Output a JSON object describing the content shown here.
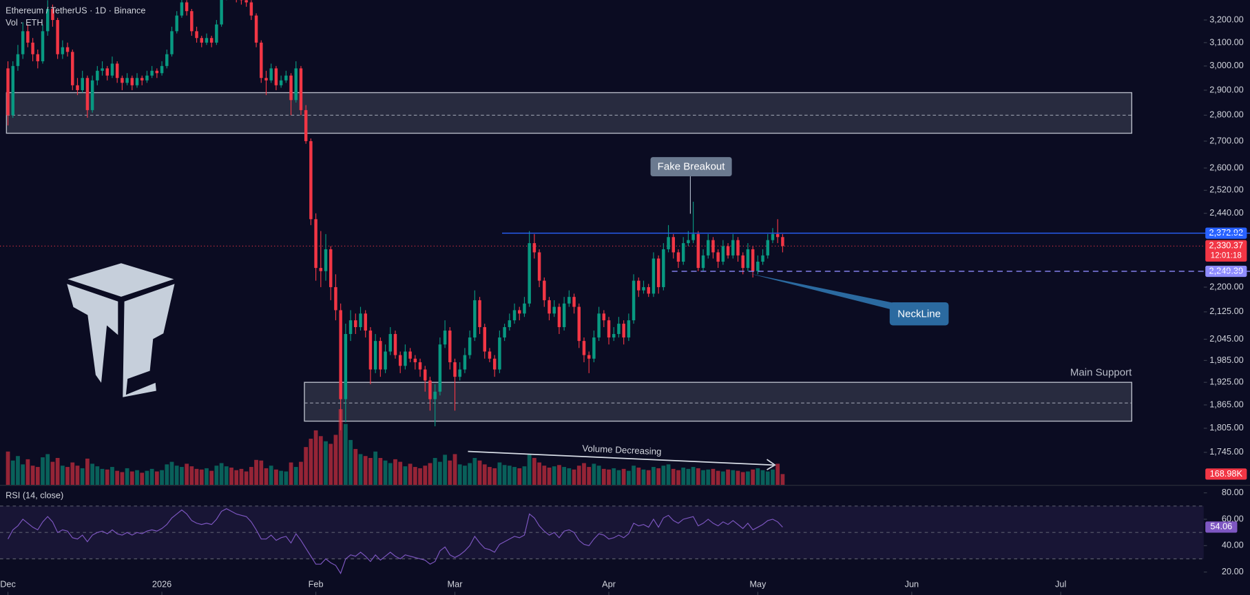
{
  "header": {
    "symbol": "Ethereum / TetherUS · 1D · Binance"
  },
  "annotations": {
    "fake_breakout": "Fake Breakout",
    "neckline": "NeckLine",
    "volume_note": "Volume Decreasing"
  },
  "chart_data": {
    "type": "candlestick",
    "log_scale": true,
    "up_color": "#089981",
    "down_color": "#f23645",
    "xlim": [
      -1.6,
      240.8
    ],
    "xticks": [
      {
        "value": 0,
        "label": "Dec"
      },
      {
        "value": 31,
        "label": "2026"
      },
      {
        "value": 62,
        "label": "Feb"
      },
      {
        "value": 90,
        "label": "Mar"
      },
      {
        "value": 121,
        "label": "Apr"
      },
      {
        "value": 151,
        "label": "May"
      },
      {
        "value": 182,
        "label": "Jun"
      },
      {
        "value": 212,
        "label": "Jul"
      }
    ],
    "ylim": [
      1667,
      3291
    ],
    "yticks": [
      {
        "value": 3200,
        "label": "3,200.00"
      },
      {
        "value": 3100,
        "label": "3,100.00"
      },
      {
        "value": 3000,
        "label": "3,000.00"
      },
      {
        "value": 2900,
        "label": "2,900.00"
      },
      {
        "value": 2800,
        "label": "2,800.00"
      },
      {
        "value": 2700,
        "label": "2,700.00"
      },
      {
        "value": 2600,
        "label": "2,600.00"
      },
      {
        "value": 2520,
        "label": "2,520.00"
      },
      {
        "value": 2440,
        "label": "2,440.00"
      },
      {
        "value": 2200,
        "label": "2,200.00"
      },
      {
        "value": 2125,
        "label": "2,125.00"
      },
      {
        "value": 2045,
        "label": "2,045.00"
      },
      {
        "value": 1985,
        "label": "1,985.00"
      },
      {
        "value": 1925,
        "label": "1,925.00"
      },
      {
        "value": 1865,
        "label": "1,865.00"
      },
      {
        "value": 1805,
        "label": "1,805.00"
      },
      {
        "value": 1745,
        "label": "1,745.00"
      }
    ],
    "ohlc": [
      [
        2990,
        3020,
        2760,
        2800
      ],
      [
        2800,
        3020,
        2790,
        3000
      ],
      [
        3000,
        3090,
        2980,
        3050
      ],
      [
        3050,
        3190,
        3030,
        3150
      ],
      [
        3150,
        3180,
        3080,
        3100
      ],
      [
        3100,
        3120,
        3020,
        3050
      ],
      [
        3050,
        3070,
        2990,
        3020
      ],
      [
        3020,
        3180,
        3010,
        3150
      ],
      [
        3150,
        3290,
        3130,
        3250
      ],
      [
        3250,
        3270,
        3170,
        3200
      ],
      [
        3200,
        3210,
        3030,
        3050
      ],
      [
        3050,
        3110,
        3030,
        3080
      ],
      [
        3080,
        3100,
        3040,
        3060
      ],
      [
        3060,
        3070,
        2900,
        2920
      ],
      [
        2920,
        2950,
        2880,
        2900
      ],
      [
        2900,
        2980,
        2890,
        2950
      ],
      [
        2950,
        2960,
        2790,
        2820
      ],
      [
        2820,
        2960,
        2810,
        2940
      ],
      [
        2940,
        3000,
        2920,
        2980
      ],
      [
        2980,
        3020,
        2960,
        2990
      ],
      [
        2990,
        3000,
        2940,
        2960
      ],
      [
        2960,
        3040,
        2950,
        3010
      ],
      [
        3010,
        3020,
        2930,
        2950
      ],
      [
        2950,
        2960,
        2900,
        2930
      ],
      [
        2930,
        2970,
        2920,
        2950
      ],
      [
        2950,
        2960,
        2900,
        2920
      ],
      [
        2920,
        2970,
        2910,
        2950
      ],
      [
        2950,
        2960,
        2920,
        2940
      ],
      [
        2940,
        2980,
        2930,
        2960
      ],
      [
        2960,
        3000,
        2950,
        2980
      ],
      [
        2980,
        2990,
        2950,
        2970
      ],
      [
        2970,
        3020,
        2960,
        3000
      ],
      [
        3000,
        3070,
        2990,
        3050
      ],
      [
        3050,
        3170,
        3040,
        3150
      ],
      [
        3150,
        3240,
        3140,
        3220
      ],
      [
        3220,
        3300,
        3210,
        3280
      ],
      [
        3280,
        3290,
        3220,
        3240
      ],
      [
        3240,
        3250,
        3130,
        3150
      ],
      [
        3150,
        3170,
        3100,
        3120
      ],
      [
        3120,
        3130,
        3080,
        3100
      ],
      [
        3100,
        3140,
        3090,
        3120
      ],
      [
        3120,
        3130,
        3080,
        3100
      ],
      [
        3100,
        3200,
        3090,
        3180
      ],
      [
        3180,
        3320,
        3170,
        3300
      ],
      [
        3300,
        3380,
        3290,
        3350
      ],
      [
        3350,
        3360,
        3300,
        3320
      ],
      [
        3320,
        3330,
        3280,
        3300
      ],
      [
        3300,
        3310,
        3270,
        3290
      ],
      [
        3290,
        3300,
        3260,
        3280
      ],
      [
        3280,
        3290,
        3200,
        3220
      ],
      [
        3220,
        3230,
        3080,
        3100
      ],
      [
        3100,
        3110,
        2930,
        2950
      ],
      [
        2950,
        2980,
        2880,
        2940
      ],
      [
        2940,
        3010,
        2930,
        2990
      ],
      [
        2990,
        3000,
        2900,
        2920
      ],
      [
        2920,
        2960,
        2910,
        2940
      ],
      [
        2940,
        2980,
        2930,
        2960
      ],
      [
        2960,
        2970,
        2800,
        2860
      ],
      [
        2860,
        3020,
        2850,
        2990
      ],
      [
        2990,
        3000,
        2800,
        2820
      ],
      [
        2820,
        2840,
        2690,
        2700
      ],
      [
        2700,
        2710,
        2400,
        2420
      ],
      [
        2420,
        2440,
        2220,
        2260
      ],
      [
        2260,
        2380,
        2200,
        2250
      ],
      [
        2250,
        2370,
        2220,
        2320
      ],
      [
        2320,
        2330,
        2160,
        2200
      ],
      [
        2200,
        2240,
        2100,
        2130
      ],
      [
        2130,
        2150,
        1800,
        1880
      ],
      [
        1880,
        2090,
        1820,
        2060
      ],
      [
        2060,
        2130,
        2040,
        2100
      ],
      [
        2100,
        2120,
        2060,
        2080
      ],
      [
        2080,
        2140,
        2070,
        2120
      ],
      [
        2120,
        2130,
        2050,
        2070
      ],
      [
        2070,
        2080,
        1920,
        1960
      ],
      [
        1960,
        2060,
        1950,
        2040
      ],
      [
        2040,
        2050,
        1940,
        1960
      ],
      [
        1960,
        2030,
        1950,
        2010
      ],
      [
        2010,
        2080,
        2000,
        2060
      ],
      [
        2060,
        2070,
        1990,
        2000
      ],
      [
        2000,
        2010,
        1950,
        1970
      ],
      [
        1970,
        2030,
        1960,
        2010
      ],
      [
        2010,
        2020,
        1980,
        1990
      ],
      [
        1990,
        2000,
        1960,
        1980
      ],
      [
        1980,
        1990,
        1940,
        1960
      ],
      [
        1960,
        1970,
        1900,
        1930
      ],
      [
        1930,
        1940,
        1850,
        1880
      ],
      [
        1880,
        1920,
        1810,
        1900
      ],
      [
        1900,
        2050,
        1890,
        2030
      ],
      [
        2030,
        2100,
        2020,
        2070
      ],
      [
        2070,
        2080,
        1960,
        1980
      ],
      [
        1980,
        1990,
        1850,
        1940
      ],
      [
        1940,
        1980,
        1930,
        1960
      ],
      [
        1960,
        2020,
        1950,
        2000
      ],
      [
        2000,
        2070,
        1990,
        2050
      ],
      [
        2050,
        2190,
        2040,
        2160
      ],
      [
        2160,
        2170,
        2060,
        2080
      ],
      [
        2080,
        2090,
        1990,
        2010
      ],
      [
        2010,
        2020,
        1980,
        1990
      ],
      [
        1990,
        2000,
        1940,
        1960
      ],
      [
        1960,
        2070,
        1950,
        2050
      ],
      [
        2050,
        2090,
        2040,
        2080
      ],
      [
        2080,
        2120,
        2070,
        2100
      ],
      [
        2100,
        2150,
        2090,
        2130
      ],
      [
        2130,
        2140,
        2100,
        2120
      ],
      [
        2120,
        2170,
        2110,
        2150
      ],
      [
        2150,
        2380,
        2140,
        2340
      ],
      [
        2340,
        2370,
        2290,
        2310
      ],
      [
        2310,
        2320,
        2200,
        2220
      ],
      [
        2220,
        2230,
        2140,
        2160
      ],
      [
        2160,
        2170,
        2100,
        2120
      ],
      [
        2120,
        2160,
        2110,
        2140
      ],
      [
        2140,
        2150,
        2060,
        2080
      ],
      [
        2080,
        2170,
        2070,
        2150
      ],
      [
        2150,
        2190,
        2140,
        2170
      ],
      [
        2170,
        2180,
        2120,
        2140
      ],
      [
        2140,
        2150,
        2020,
        2040
      ],
      [
        2040,
        2050,
        1980,
        2000
      ],
      [
        2000,
        2010,
        1950,
        1990
      ],
      [
        1990,
        2070,
        1980,
        2050
      ],
      [
        2050,
        2140,
        2040,
        2120
      ],
      [
        2120,
        2130,
        2080,
        2100
      ],
      [
        2100,
        2110,
        2030,
        2050
      ],
      [
        2050,
        2080,
        2040,
        2060
      ],
      [
        2060,
        2110,
        2050,
        2090
      ],
      [
        2090,
        2100,
        2030,
        2050
      ],
      [
        2050,
        2120,
        2040,
        2100
      ],
      [
        2100,
        2240,
        2090,
        2220
      ],
      [
        2220,
        2230,
        2170,
        2190
      ],
      [
        2190,
        2220,
        2180,
        2200
      ],
      [
        2200,
        2210,
        2170,
        2180
      ],
      [
        2180,
        2310,
        2170,
        2290
      ],
      [
        2290,
        2300,
        2180,
        2200
      ],
      [
        2200,
        2340,
        2190,
        2320
      ],
      [
        2320,
        2400,
        2310,
        2360
      ],
      [
        2360,
        2370,
        2290,
        2310
      ],
      [
        2310,
        2320,
        2260,
        2280
      ],
      [
        2280,
        2360,
        2270,
        2340
      ],
      [
        2340,
        2380,
        2330,
        2350
      ],
      [
        2350,
        2480,
        2340,
        2370
      ],
      [
        2370,
        2380,
        2250,
        2260
      ],
      [
        2260,
        2320,
        2250,
        2300
      ],
      [
        2300,
        2370,
        2290,
        2350
      ],
      [
        2350,
        2360,
        2290,
        2310
      ],
      [
        2310,
        2320,
        2260,
        2280
      ],
      [
        2280,
        2350,
        2270,
        2330
      ],
      [
        2330,
        2340,
        2290,
        2300
      ],
      [
        2300,
        2370,
        2290,
        2350
      ],
      [
        2350,
        2360,
        2280,
        2300
      ],
      [
        2300,
        2310,
        2240,
        2260
      ],
      [
        2260,
        2340,
        2250,
        2320
      ],
      [
        2320,
        2330,
        2230,
        2250
      ],
      [
        2250,
        2300,
        2240,
        2280
      ],
      [
        2280,
        2320,
        2270,
        2300
      ],
      [
        2300,
        2370,
        2290,
        2350
      ],
      [
        2350,
        2390,
        2340,
        2370
      ],
      [
        2370,
        2420,
        2340,
        2360
      ],
      [
        2360,
        2370,
        2310,
        2330.37
      ]
    ],
    "volume": {
      "name": "Vol · ETH",
      "last_value_label": "168.98K",
      "values": [
        520,
        380,
        450,
        320,
        400,
        300,
        280,
        430,
        480,
        360,
        420,
        300,
        280,
        350,
        300,
        260,
        410,
        330,
        290,
        250,
        240,
        280,
        220,
        200,
        260,
        210,
        230,
        190,
        220,
        250,
        210,
        230,
        320,
        360,
        300,
        280,
        330,
        290,
        250,
        240,
        260,
        220,
        300,
        340,
        290,
        270,
        230,
        250,
        210,
        280,
        390,
        380,
        260,
        300,
        240,
        220,
        210,
        350,
        280,
        360,
        590,
        720,
        850,
        760,
        680,
        640,
        780,
        1180,
        950,
        700,
        560,
        480,
        450,
        420,
        520,
        420,
        380,
        340,
        400,
        360,
        290,
        330,
        280,
        260,
        300,
        340,
        420,
        360,
        470,
        380,
        480,
        320,
        300,
        340,
        420,
        380,
        320,
        280,
        260,
        350,
        310,
        300,
        280,
        260,
        290,
        480,
        420,
        350,
        300,
        270,
        290,
        310,
        280,
        260,
        240,
        300,
        340,
        280,
        330,
        300,
        250,
        240,
        260,
        230,
        250,
        220,
        300,
        270,
        240,
        230,
        280,
        260,
        300,
        320,
        250,
        230,
        270,
        250,
        280,
        260,
        230,
        240,
        250,
        220,
        210,
        240,
        230,
        220,
        200,
        210,
        240,
        260,
        230,
        210,
        240,
        330,
        168.98
      ]
    },
    "last_price": {
      "value": 2330.37,
      "label": "2,330.37",
      "countdown": "12:01:18"
    },
    "levels": [
      {
        "value": 2372.92,
        "label": "2,372.92",
        "color": "#2962ff",
        "dashed": false
      },
      {
        "value": 2249.39,
        "label": "2,249.39",
        "color": "#8f8cff",
        "dashed": true
      }
    ],
    "zones": [
      {
        "top": 2890,
        "bottom": 2730,
        "mid": 2800
      },
      {
        "top": 1925,
        "bottom": 1823,
        "mid": 1870,
        "label": "Main Support"
      }
    ],
    "rsi": {
      "name": "RSI (14, close)",
      "color": "#7e57c2",
      "value_label": "54.06",
      "ylim": [
        2.6,
        85.4
      ],
      "yticks": [
        {
          "value": 80,
          "label": "80.00"
        },
        {
          "value": 60,
          "label": "60.00"
        },
        {
          "value": 40,
          "label": "40.00"
        },
        {
          "value": 20,
          "label": "20.00"
        }
      ],
      "levels": [
        70,
        50,
        30
      ],
      "values": [
        45,
        52,
        55,
        60,
        57,
        54,
        52,
        58,
        62,
        58,
        50,
        52,
        51,
        46,
        45,
        48,
        43,
        48,
        50,
        51,
        49,
        52,
        49,
        48,
        50,
        48,
        50,
        49,
        51,
        52,
        51,
        53,
        56,
        61,
        64,
        67,
        64,
        59,
        57,
        56,
        57,
        56,
        60,
        66,
        68,
        66,
        64,
        63,
        62,
        58,
        52,
        45,
        45,
        48,
        44,
        46,
        47,
        42,
        49,
        44,
        38,
        32,
        26,
        26,
        30,
        27,
        25,
        19,
        30,
        33,
        32,
        35,
        32,
        28,
        33,
        29,
        32,
        35,
        32,
        30,
        33,
        32,
        31,
        30,
        29,
        26,
        28,
        36,
        39,
        33,
        31,
        33,
        36,
        40,
        47,
        42,
        38,
        37,
        35,
        41,
        43,
        45,
        47,
        46,
        48,
        64,
        61,
        55,
        51,
        48,
        50,
        46,
        51,
        52,
        50,
        44,
        41,
        40,
        45,
        49,
        48,
        45,
        46,
        48,
        46,
        49,
        57,
        55,
        56,
        54,
        60,
        54,
        61,
        63,
        59,
        57,
        60,
        61,
        62,
        55,
        57,
        60,
        57,
        55,
        58,
        56,
        59,
        56,
        53,
        57,
        52,
        54,
        56,
        59,
        60,
        58,
        54.06
      ]
    }
  }
}
